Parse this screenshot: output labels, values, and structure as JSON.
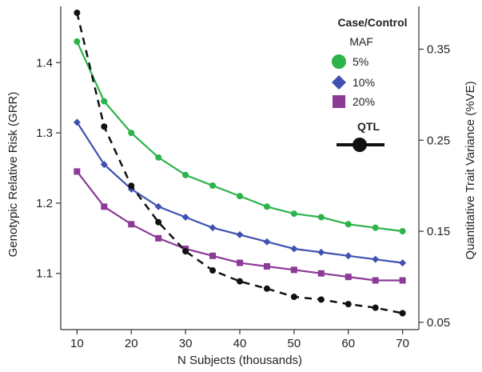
{
  "chart_data": {
    "type": "line",
    "x": [
      10,
      15,
      20,
      25,
      30,
      35,
      40,
      45,
      50,
      55,
      60,
      65,
      70
    ],
    "xlabel": "N Subjects (thousands)",
    "xlim": [
      7,
      73
    ],
    "xticks": [
      10,
      20,
      30,
      40,
      50,
      60,
      70
    ],
    "ylabel_left": "Genotypic Relative Risk (GRR)",
    "ylim_left": [
      1.02,
      1.48
    ],
    "yticks_left": [
      "1.1",
      "1.2",
      "1.3",
      "1.4"
    ],
    "ylabel_right": "Quantitative Trait Variance (%VE)",
    "ylim_right": [
      0.042,
      0.397
    ],
    "yticks_right": [
      "0.05",
      "0.15",
      "0.25",
      "0.35"
    ],
    "series": [
      {
        "name": "5%",
        "axis": "left",
        "color": "#2cb34a",
        "marker": "circle",
        "dash": false,
        "values": [
          1.43,
          1.345,
          1.3,
          1.265,
          1.24,
          1.225,
          1.21,
          1.195,
          1.185,
          1.18,
          1.17,
          1.165,
          1.16
        ]
      },
      {
        "name": "10%",
        "axis": "left",
        "color": "#3f51b0",
        "marker": "diamond",
        "dash": false,
        "values": [
          1.315,
          1.255,
          1.22,
          1.195,
          1.18,
          1.165,
          1.155,
          1.145,
          1.135,
          1.13,
          1.125,
          1.12,
          1.115
        ]
      },
      {
        "name": "20%",
        "axis": "left",
        "color": "#8b3a96",
        "marker": "square",
        "dash": false,
        "values": [
          1.245,
          1.195,
          1.17,
          1.15,
          1.135,
          1.125,
          1.115,
          1.11,
          1.105,
          1.1,
          1.095,
          1.09,
          1.09
        ]
      },
      {
        "name": "QTL",
        "axis": "right",
        "color": "#111111",
        "marker": "circle",
        "dash": true,
        "values": [
          0.39,
          0.265,
          0.2,
          0.16,
          0.128,
          0.107,
          0.095,
          0.087,
          0.078,
          0.075,
          0.07,
          0.066,
          0.06
        ]
      }
    ],
    "legend": {
      "title": "Case/Control",
      "subtitle": "MAF",
      "entries": [
        "5%",
        "10%",
        "20%"
      ],
      "qtl_label": "QTL",
      "placement": "top-right"
    },
    "grid": false
  }
}
